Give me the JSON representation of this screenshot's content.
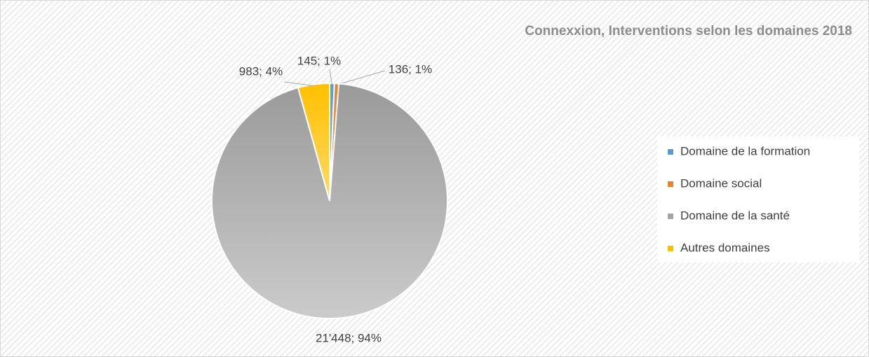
{
  "chart_data": {
    "type": "pie",
    "title": "Connexxion, Interventions selon les domaines 2018",
    "categories": [
      "Domaine de la formation",
      "Domaine social",
      "Domaine de la santé",
      "Autres domaines"
    ],
    "values": [
      145,
      136,
      21448,
      983
    ],
    "value_labels": [
      "145; 1%",
      "136; 1%",
      "21'448; 94%",
      "983; 4%"
    ],
    "colors": [
      "#5b9bd5",
      "#ed7d31",
      "#a5a5a5",
      "#ffc000"
    ],
    "legend": "right"
  }
}
